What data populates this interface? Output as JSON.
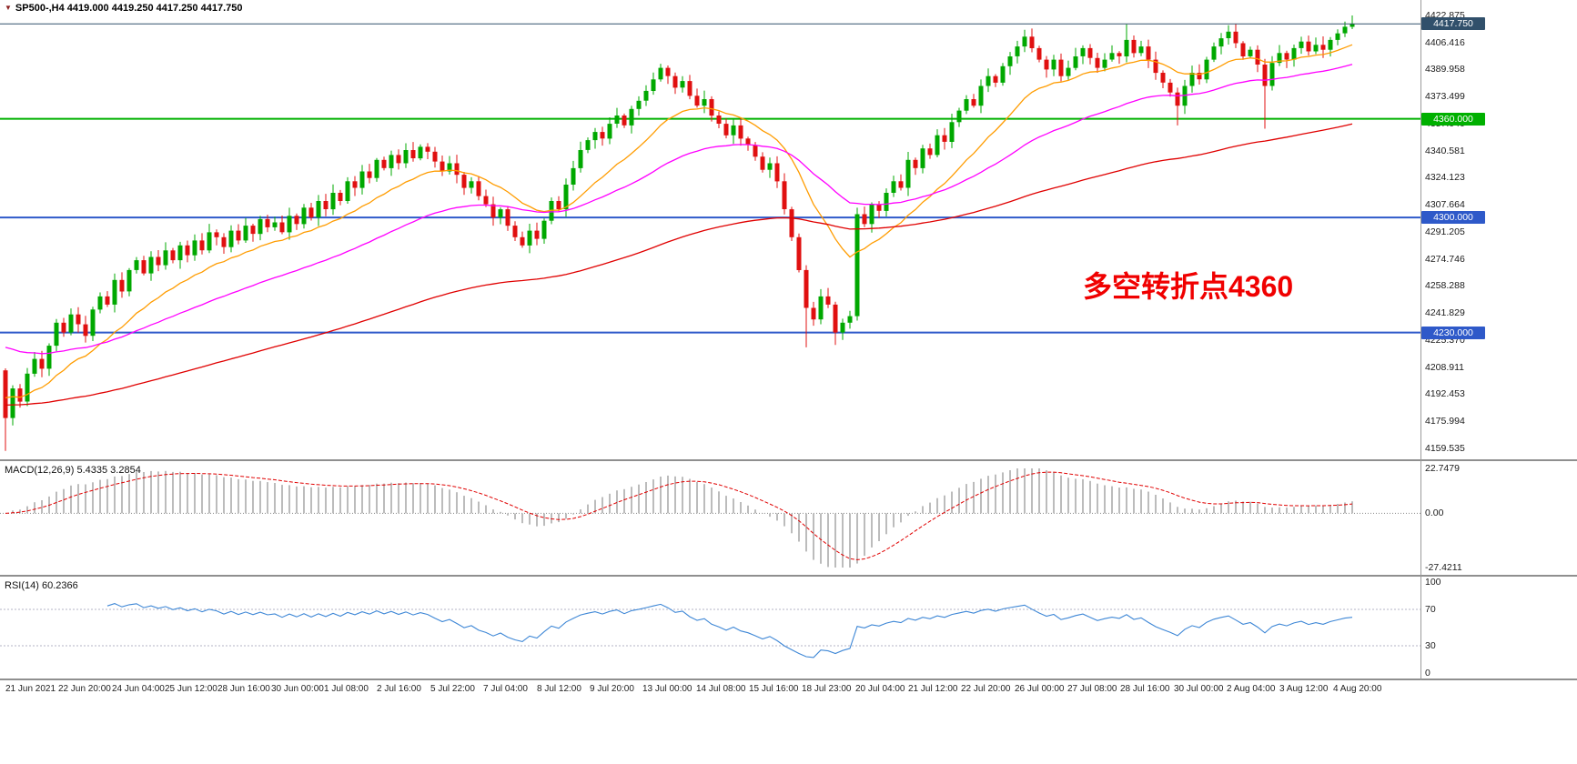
{
  "titlebar": {
    "symbol_ohlc": "SP500-,H4  4419.000 4419.250 4417.250 4417.750"
  },
  "icons": {
    "collapse_arrow": "▼"
  },
  "annotation": {
    "text": "多空转折点4360"
  },
  "panels": {
    "macd": {
      "header": "MACD(12,26,9) 5.4335 3.2854",
      "axis": [
        "22.7479",
        "0.00",
        "-27.4211"
      ]
    },
    "rsi": {
      "header": "RSI(14) 60.2366",
      "axis": [
        "100",
        "70",
        "30",
        "0"
      ]
    }
  },
  "price_axis": {
    "min": 4159.535,
    "max": 4422.875,
    "ticks": [
      "4422.875",
      "4406.416",
      "4389.958",
      "4373.499",
      "4357.040",
      "4340.581",
      "4324.123",
      "4307.664",
      "4291.205",
      "4274.746",
      "4258.288",
      "4241.829",
      "4225.370",
      "4208.911",
      "4192.453",
      "4175.994",
      "4159.535"
    ]
  },
  "levels": {
    "current_price": {
      "value": 4417.75,
      "label": "4417.750",
      "color": "#31506b"
    },
    "hlines": [
      {
        "value": 4360,
        "label": "4360.000",
        "color": "#00b000"
      },
      {
        "value": 4300,
        "label": "4300.000",
        "color": "#2e59c9"
      },
      {
        "value": 4230,
        "label": "4230.000",
        "color": "#2e59c9"
      }
    ]
  },
  "time_axis": [
    "21 Jun 2021",
    "22 Jun 20:00",
    "24 Jun 04:00",
    "25 Jun 12:00",
    "28 Jun 16:00",
    "30 Jun 00:00",
    "1 Jul 08:00",
    "2 Jul 16:00",
    "5 Jul 22:00",
    "7 Jul 04:00",
    "8 Jul 12:00",
    "9 Jul 20:00",
    "13 Jul 00:00",
    "14 Jul 08:00",
    "15 Jul 16:00",
    "18 Jul 23:00",
    "20 Jul 04:00",
    "21 Jul 12:00",
    "22 Jul 20:00",
    "26 Jul 00:00",
    "27 Jul 08:00",
    "28 Jul 16:00",
    "30 Jul 00:00",
    "2 Aug 04:00",
    "3 Aug 12:00",
    "4 Aug 20:00"
  ],
  "chart_data": [
    {
      "type": "candlestick",
      "title": "SP500- H4",
      "ohlc_readout": {
        "open": "4419.000",
        "high": "4419.250",
        "low": "4417.250",
        "close": "4417.750"
      },
      "ylim": [
        4159.535,
        4422.875
      ],
      "open_first": 4207,
      "closes": [
        4178,
        4196,
        4188,
        4205,
        4214,
        4208,
        4222,
        4236,
        4230,
        4241,
        4235,
        4228,
        4244,
        4252,
        4247,
        4262,
        4255,
        4268,
        4274,
        4266,
        4276,
        4271,
        4280,
        4274,
        4283,
        4277,
        4286,
        4280,
        4291,
        4288,
        4282,
        4292,
        4286,
        4295,
        4290,
        4299,
        4294,
        4297,
        4291,
        4301,
        4296,
        4306,
        4300,
        4310,
        4305,
        4315,
        4310,
        4322,
        4318,
        4328,
        4324,
        4335,
        4330,
        4338,
        4333,
        4341,
        4336,
        4343,
        4340,
        4334,
        4328,
        4333,
        4326,
        4318,
        4322,
        4313,
        4308,
        4300,
        4305,
        4295,
        4288,
        4283,
        4292,
        4287,
        4298,
        4310,
        4305,
        4320,
        4330,
        4341,
        4347,
        4352,
        4348,
        4357,
        4362,
        4356,
        4366,
        4371,
        4377,
        4384,
        4391,
        4386,
        4379,
        4383,
        4374,
        4368,
        4372,
        4362,
        4357,
        4350,
        4356,
        4348,
        4344,
        4337,
        4329,
        4333,
        4322,
        4305,
        4288,
        4268,
        4245,
        4238,
        4252,
        4247,
        4230,
        4236,
        4240,
        4302,
        4296,
        4308,
        4304,
        4315,
        4322,
        4318,
        4335,
        4330,
        4342,
        4338,
        4350,
        4346,
        4358,
        4365,
        4372,
        4368,
        4380,
        4386,
        4382,
        4392,
        4398,
        4404,
        4410,
        4403,
        4396,
        4390,
        4396,
        4386,
        4391,
        4398,
        4403,
        4397,
        4391,
        4396,
        4400,
        4398,
        4408,
        4400,
        4404,
        4396,
        4388,
        4382,
        4376,
        4368,
        4380,
        4388,
        4384,
        4396,
        4404,
        4409,
        4413,
        4406,
        4398,
        4402,
        4393,
        4380,
        4394,
        4400,
        4396,
        4403,
        4407,
        4401,
        4405,
        4402,
        4408,
        4412,
        4416,
        4417.75
      ],
      "wick_overrides": {
        "0": {
          "low": 4158
        },
        "90": {
          "high": 4393.5
        },
        "110": {
          "low": 4221
        },
        "114": {
          "low": 4222.5
        },
        "154": {
          "high": 4417.5
        },
        "161": {
          "low": 4356
        },
        "173": {
          "low": 4354
        },
        "185": {
          "high": 4422.875
        }
      },
      "overlays": [
        "ma-fast-orange",
        "ma-mid-magenta",
        "ma-slow-red"
      ],
      "hlines": [
        4360,
        4300,
        4230
      ],
      "current_price": 4417.75
    },
    {
      "type": "bar",
      "name": "MACD(12,26,9)",
      "derived_from": "closes",
      "readout": [
        5.4335,
        3.2854
      ],
      "ylim": [
        -27.4211,
        22.7479
      ]
    },
    {
      "type": "line",
      "name": "RSI(14)",
      "derived_from": "closes",
      "readout": 60.2366,
      "ylim": [
        0,
        100
      ],
      "levels": [
        70,
        30
      ]
    }
  ],
  "colors": {
    "bull": "#00a800",
    "bear": "#e01010",
    "ma_fast": "#ff9c00",
    "ma_mid": "#ff00ff",
    "ma_slow": "#e00000",
    "macd_hist": "#bcbcbc",
    "macd_signal": "#e00000",
    "rsi_line": "#3e87d6",
    "level_text": "#ffffff"
  }
}
